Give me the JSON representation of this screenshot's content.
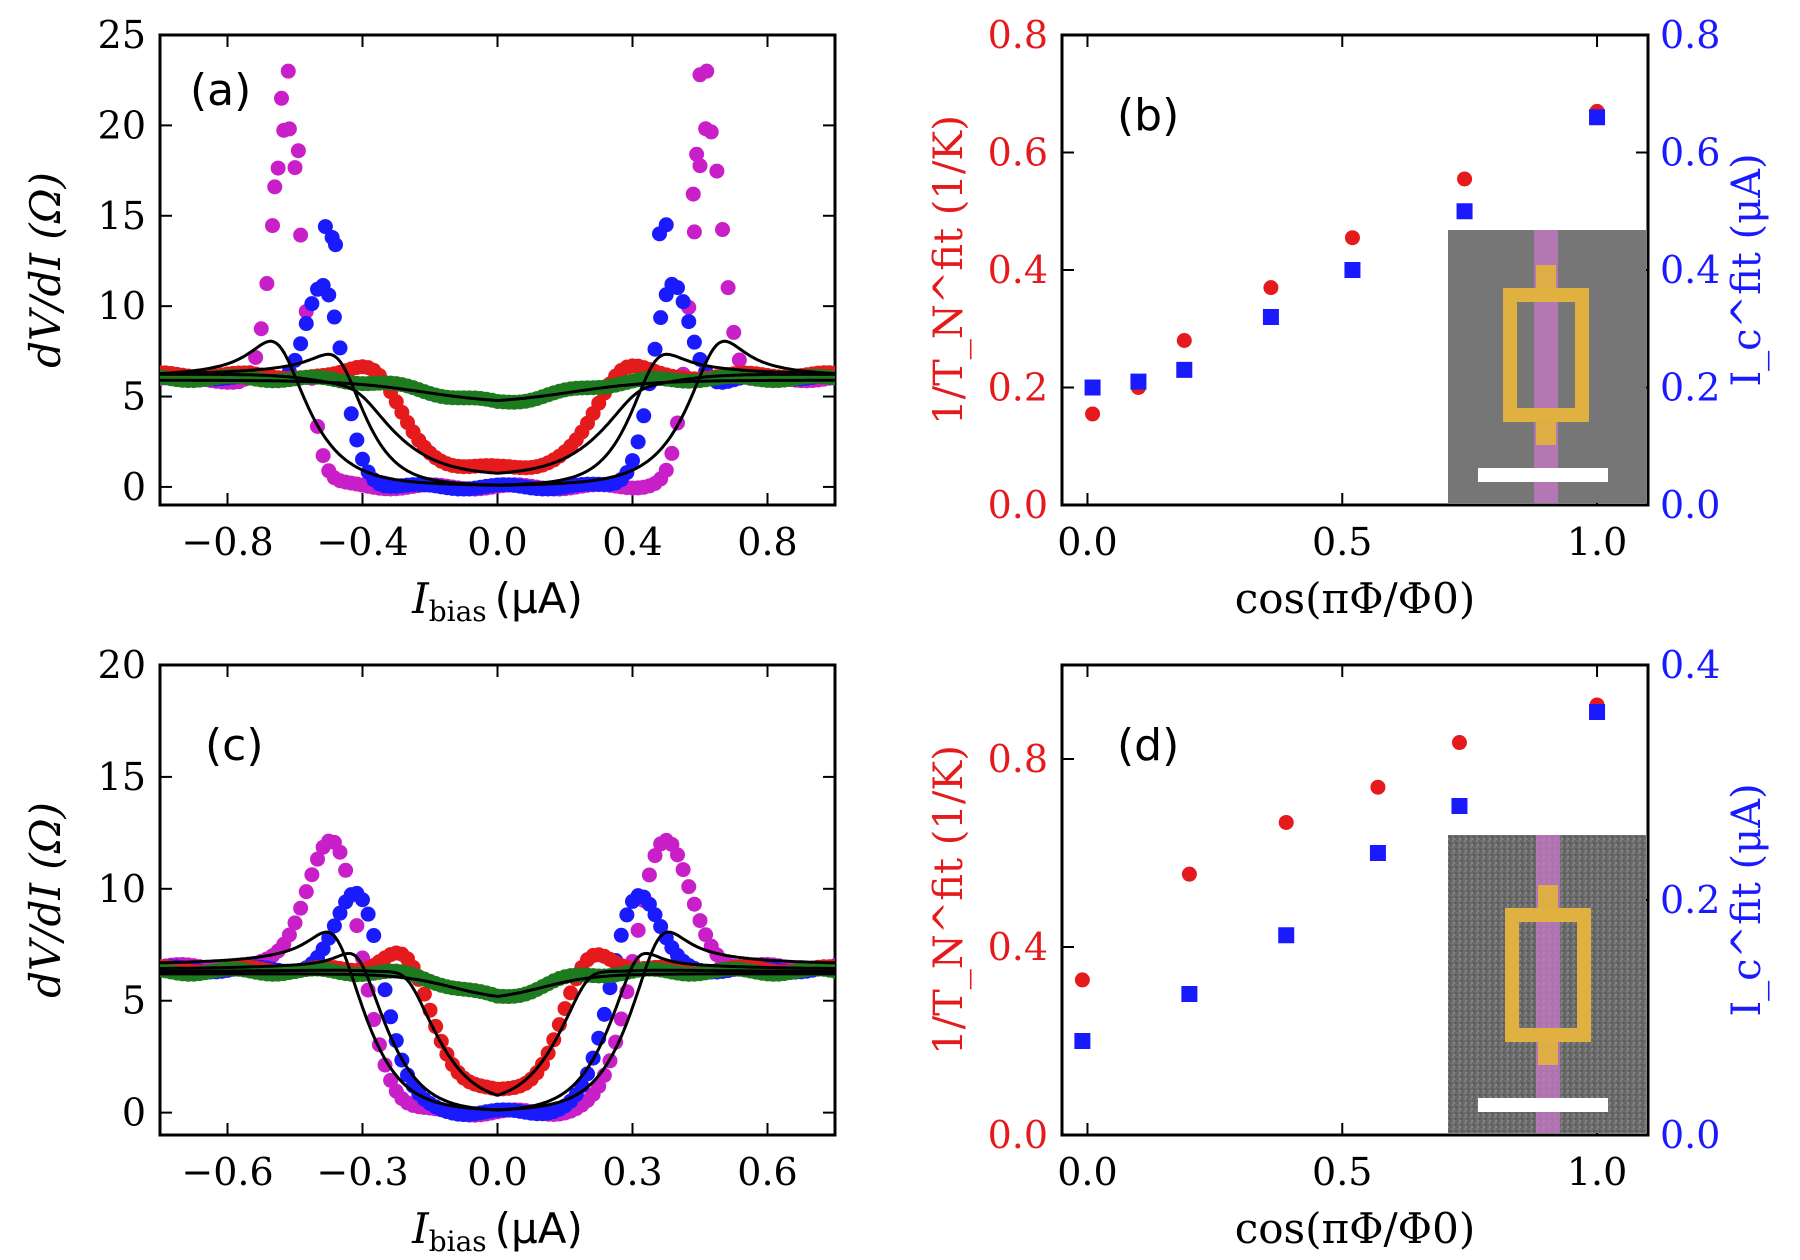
{
  "colors": {
    "red": "#e41a1c",
    "blue": "#1a1aff",
    "magenta": "#c81fc8",
    "green": "#1e7a1e",
    "black": "#000000"
  },
  "chart_data": [
    {
      "id": "a",
      "type": "scatter",
      "panel_label": "(a)",
      "xlabel_main": "I",
      "xlabel_sub": "bias",
      "xlabel_unit": "(μA)",
      "ylabel": "dV/dI (Ω)",
      "xlim": [
        -1.0,
        1.0
      ],
      "ylim": [
        -1,
        25
      ],
      "xticks": [
        -0.8,
        -0.4,
        0.0,
        0.4,
        0.8
      ],
      "xtick_labels": [
        "−0.8",
        "−0.4",
        "0.0",
        "0.4",
        "0.8"
      ],
      "yticks": [
        0,
        5,
        10,
        15,
        20,
        25
      ],
      "ytick_labels": [
        "0",
        "5",
        "10",
        "15",
        "20",
        "25"
      ],
      "series": [
        {
          "name": "magenta",
          "color": "magenta",
          "base": 6.0,
          "w": 0.62,
          "s": 0.045,
          "A": 17.0,
          "peak_x": 0.62,
          "peak_s": 0.045,
          "extra": [
            [
              -0.64,
              21.5
            ],
            [
              -0.62,
              23.0
            ],
            [
              -0.59,
              18.6
            ],
            [
              -0.66,
              16.6
            ],
            [
              0.62,
              23.0
            ],
            [
              0.6,
              22.8
            ],
            [
              0.59,
              18.4
            ],
            [
              0.58,
              16.2
            ]
          ]
        },
        {
          "name": "blue",
          "color": "blue",
          "base": 6.1,
          "w": 0.53,
          "s": 0.05,
          "A": 8.5,
          "peak_x": 0.51,
          "peak_s": 0.055,
          "extra": [
            [
              -0.51,
              14.4
            ],
            [
              -0.49,
              13.8
            ],
            [
              -0.48,
              13.4
            ],
            [
              0.5,
              14.5
            ],
            [
              0.48,
              14.0
            ]
          ]
        },
        {
          "name": "red",
          "color": "red",
          "base": 6.2,
          "w": 0.33,
          "s": 0.07,
          "A": 2.3,
          "peak_x": 0.36,
          "peak_s": 0.07,
          "min": 1.0,
          "extra": []
        },
        {
          "name": "green",
          "color": "green",
          "base": 6.0,
          "w": 0.2,
          "s": 0.1,
          "A": 0.0,
          "peak_x": 0.4,
          "peak_s": 0.1,
          "min": 4.5,
          "extra": []
        }
      ],
      "fits": [
        {
          "base": 6.0,
          "w": 0.6,
          "s": 0.075,
          "peakAmp": 3.9,
          "peakW": 0.2
        },
        {
          "base": 6.2,
          "w": 0.42,
          "s": 0.06,
          "peakAmp": 2.7,
          "peakW": 0.18
        },
        {
          "base": 6.2,
          "w": 0.36,
          "s": 0.09,
          "peakAmp": 1.0,
          "peakW": 0.2,
          "min": 0.6
        },
        {
          "base": 5.9,
          "w": 0.22,
          "s": 0.12,
          "peakAmp": 0.0,
          "peakW": 0.2,
          "min": 4.6
        }
      ]
    },
    {
      "id": "b",
      "type": "scatter",
      "panel_label": "(b)",
      "xlabel": "cos(πΦ/Φ0)",
      "ylabel_left": "1/T_N^fit (1/K)",
      "ylabel_right": "I_c^fit (μA)",
      "xlim": [
        -0.05,
        1.1
      ],
      "ylim": [
        0.0,
        0.8
      ],
      "ylim_right": [
        0.0,
        0.8
      ],
      "xticks": [
        0.0,
        0.5,
        1.0
      ],
      "xtick_labels": [
        "0.0",
        "0.5",
        "1.0"
      ],
      "yticks": [
        0.0,
        0.2,
        0.4,
        0.6,
        0.8
      ],
      "ytick_labels": [
        "0.0",
        "0.2",
        "0.4",
        "0.6",
        "0.8"
      ],
      "yticks_right": [
        0.0,
        0.2,
        0.4,
        0.6,
        0.8
      ],
      "ytick_labels_right": [
        "0.0",
        "0.2",
        "0.4",
        "0.6",
        "0.8"
      ],
      "series": [
        {
          "name": "1/T_N^fit",
          "color": "red",
          "marker": "circle",
          "x": [
            0.01,
            0.1,
            0.19,
            0.36,
            0.52,
            0.74,
            1.0
          ],
          "y": [
            0.155,
            0.2,
            0.28,
            0.37,
            0.455,
            0.555,
            0.67
          ]
        },
        {
          "name": "I_c^fit",
          "color": "blue",
          "marker": "square",
          "axis": "right",
          "x": [
            0.01,
            0.1,
            0.19,
            0.36,
            0.52,
            0.74,
            1.0
          ],
          "y": [
            0.2,
            0.21,
            0.23,
            0.32,
            0.4,
            0.5,
            0.66
          ]
        }
      ],
      "inset": "SEM image (false color) with scale bar"
    },
    {
      "id": "c",
      "type": "scatter",
      "panel_label": "(c)",
      "xlabel_main": "I",
      "xlabel_sub": "bias",
      "xlabel_unit": "(μA)",
      "ylabel": "dV/dI (Ω)",
      "xlim": [
        -0.75,
        0.75
      ],
      "ylim": [
        -1,
        20
      ],
      "xticks": [
        -0.6,
        -0.3,
        0.0,
        0.3,
        0.6
      ],
      "xtick_labels": [
        "−0.6",
        "−0.3",
        "0.0",
        "0.3",
        "0.6"
      ],
      "yticks": [
        0,
        5,
        10,
        15,
        20
      ],
      "ytick_labels": [
        "0",
        "5",
        "10",
        "15",
        "20"
      ],
      "series": [
        {
          "name": "magenta",
          "color": "magenta",
          "base": 6.5,
          "w": 0.31,
          "s": 0.035,
          "A": 6.7,
          "peak_x": 0.36,
          "peak_s": 0.06,
          "extra": []
        },
        {
          "name": "blue",
          "color": "blue",
          "base": 6.4,
          "w": 0.26,
          "s": 0.035,
          "A": 4.7,
          "peak_x": 0.3,
          "peak_s": 0.05,
          "extra": []
        },
        {
          "name": "red",
          "color": "red",
          "base": 6.4,
          "w": 0.15,
          "s": 0.04,
          "A": 1.6,
          "peak_x": 0.2,
          "peak_s": 0.05,
          "min": 0.8,
          "extra": []
        },
        {
          "name": "green",
          "color": "green",
          "base": 6.3,
          "w": 0.1,
          "s": 0.05,
          "A": 0.0,
          "peak_x": 0.2,
          "peak_s": 0.05,
          "min": 5.0,
          "extra": []
        }
      ],
      "fits": [
        {
          "base": 6.6,
          "w": 0.31,
          "s": 0.05,
          "peakAmp": 3.0,
          "peakW": 0.14
        },
        {
          "base": 6.4,
          "w": 0.26,
          "s": 0.05,
          "peakAmp": 2.2,
          "peakW": 0.12
        },
        {
          "base": 6.3,
          "w": 0.15,
          "s": 0.05,
          "peakAmp": 1.2,
          "peakW": 0.12,
          "min": 0.4
        },
        {
          "base": 6.2,
          "w": 0.1,
          "s": 0.06,
          "peakAmp": 0.0,
          "peakW": 0.1,
          "min": 5.0
        }
      ]
    },
    {
      "id": "d",
      "type": "scatter",
      "panel_label": "(d)",
      "xlabel": "cos(πΦ/Φ0)",
      "ylabel_left": "1/T_N^fit (1/K)",
      "ylabel_right": "I_c^fit (μA)",
      "xlim": [
        -0.05,
        1.1
      ],
      "ylim": [
        0.0,
        1.0
      ],
      "ylim_right": [
        0.0,
        0.4
      ],
      "xticks": [
        0.0,
        0.5,
        1.0
      ],
      "xtick_labels": [
        "0.0",
        "0.5",
        "1.0"
      ],
      "yticks": [
        0.0,
        0.4,
        0.8
      ],
      "ytick_labels": [
        "0.0",
        "0.4",
        "0.8"
      ],
      "yticks_right": [
        0.0,
        0.2,
        0.4
      ],
      "ytick_labels_right": [
        "0.0",
        "0.2",
        "0.4"
      ],
      "series": [
        {
          "name": "1/T_N^fit",
          "color": "red",
          "marker": "circle",
          "x": [
            -0.01,
            0.2,
            0.39,
            0.57,
            0.73,
            1.0
          ],
          "y": [
            0.33,
            0.555,
            0.665,
            0.74,
            0.835,
            0.915
          ]
        },
        {
          "name": "I_c^fit",
          "color": "blue",
          "marker": "square",
          "axis": "right",
          "x": [
            -0.01,
            0.2,
            0.39,
            0.57,
            0.73,
            1.0
          ],
          "y": [
            0.08,
            0.12,
            0.17,
            0.24,
            0.28,
            0.36
          ]
        }
      ],
      "inset": "SEM image (false color) with scale bar"
    }
  ]
}
